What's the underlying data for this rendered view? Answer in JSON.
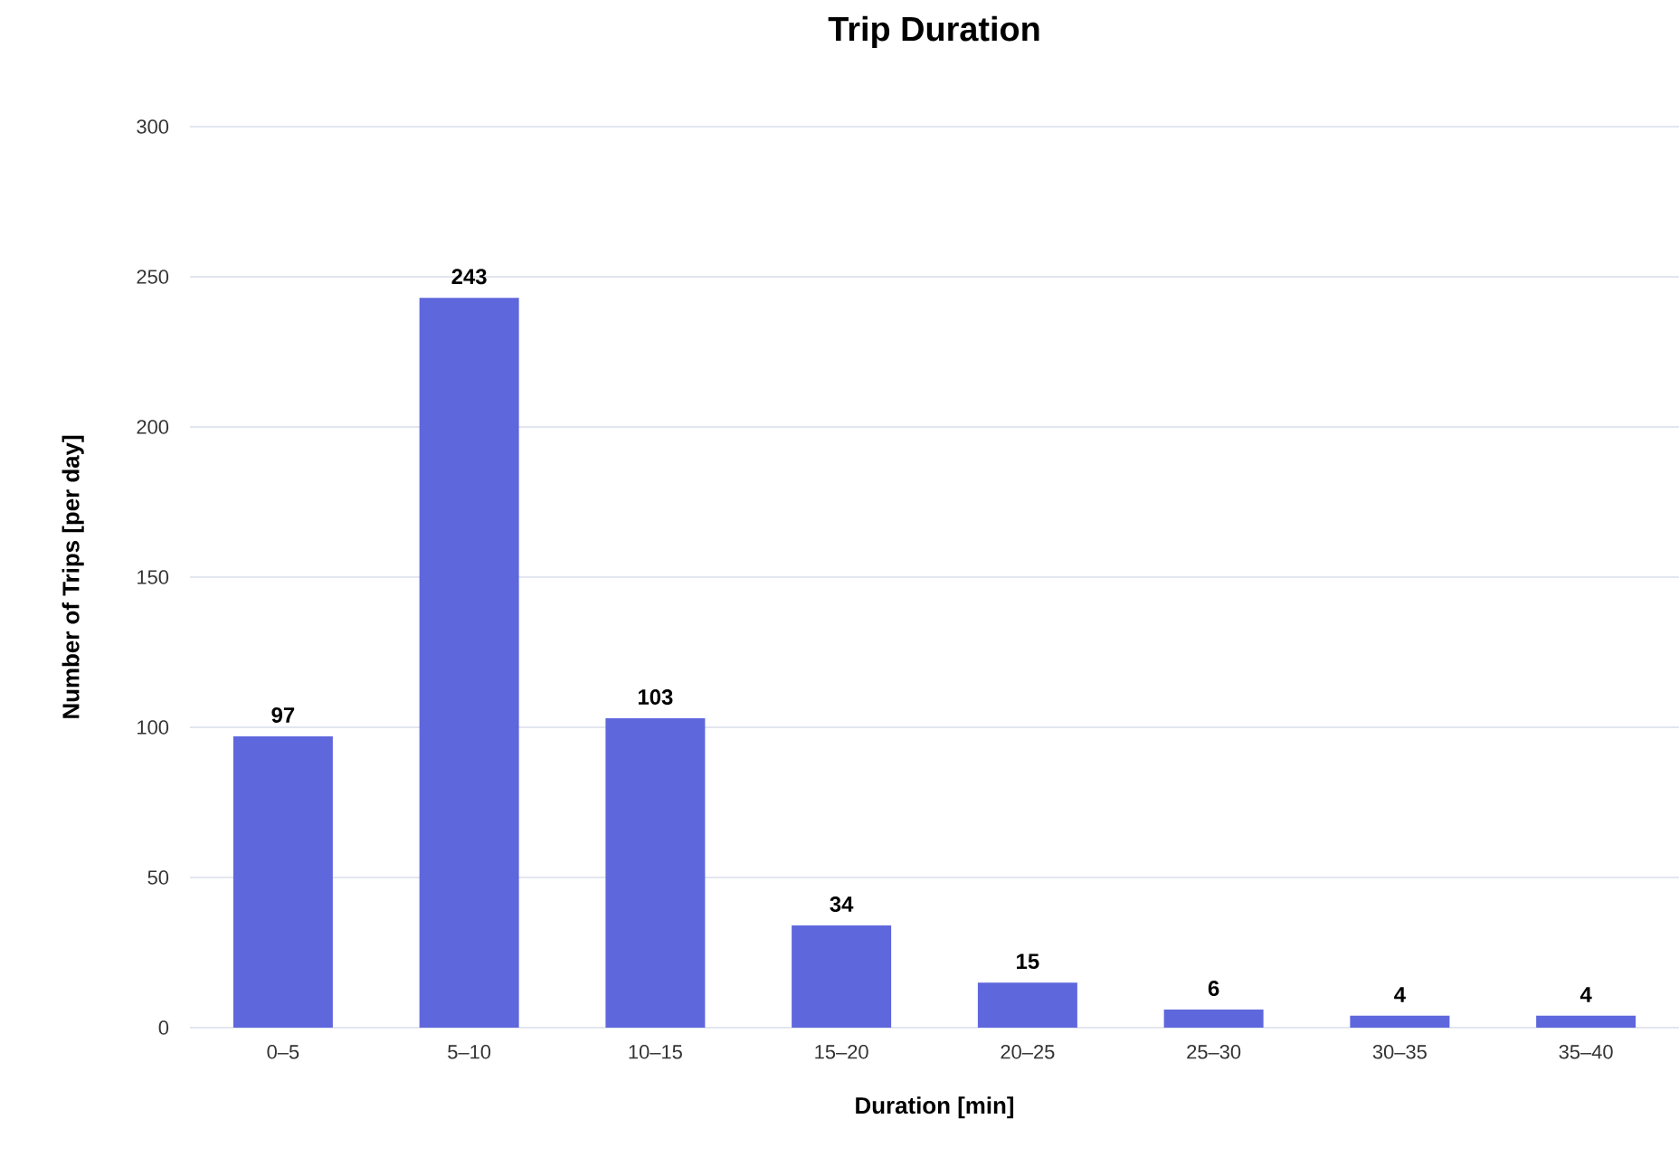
{
  "chart_data": {
    "type": "bar",
    "title": "Trip Duration",
    "xlabel": "Duration [min]",
    "ylabel": "Number of Trips [per day]",
    "categories": [
      "0–5",
      "5–10",
      "10–15",
      "15–20",
      "20–25",
      "25–30",
      "30–35",
      "35–40"
    ],
    "values": [
      97,
      243,
      103,
      34,
      15,
      6,
      4,
      4
    ],
    "color": "#5f67dd",
    "ylim": [
      0,
      300
    ],
    "yticks": [
      0,
      50,
      100,
      150,
      200,
      250,
      300
    ],
    "grid": "y",
    "data_labels": true
  }
}
